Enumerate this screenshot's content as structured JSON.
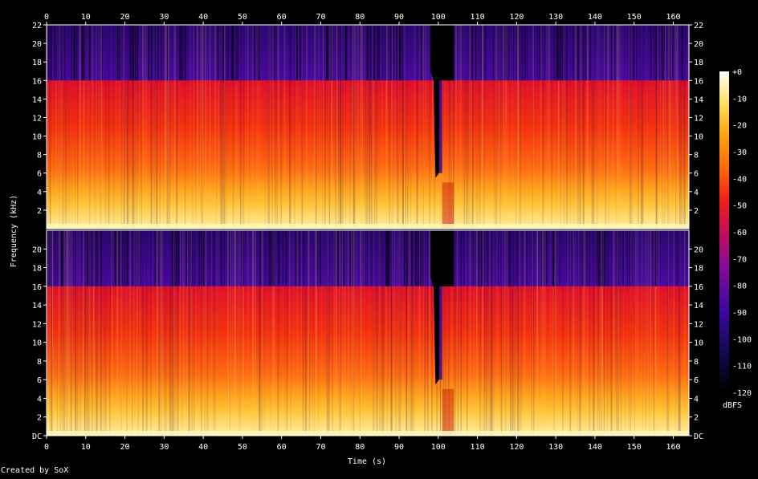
{
  "chart_data": {
    "type": "heatmap",
    "title": "",
    "xlabel": "Time (s)",
    "ylabel": "Frequency (kHz)",
    "xlim": [
      0,
      164
    ],
    "ylim": [
      0,
      22
    ],
    "x_ticks": [
      0,
      10,
      20,
      30,
      40,
      50,
      60,
      70,
      80,
      90,
      100,
      110,
      120,
      130,
      140,
      150,
      160
    ],
    "y_ticks_top": [
      "2",
      "4",
      "6",
      "8",
      "10",
      "12",
      "14",
      "16",
      "18",
      "20",
      "22"
    ],
    "y_ticks_bottom": [
      "DC",
      "2",
      "4",
      "6",
      "8",
      "10",
      "12",
      "14",
      "16",
      "18",
      "20"
    ],
    "colorbar": {
      "label": "dBFS",
      "range": [
        -120,
        0
      ],
      "ticks": [
        "+0",
        "-10",
        "-20",
        "-30",
        "-40",
        "-50",
        "-60",
        "-70",
        "-80",
        "-90",
        "-100",
        "-110",
        "-120"
      ]
    },
    "channels": 2,
    "lowpass_cutoff_khz": 16,
    "gap_region_s": [
      98,
      104
    ],
    "footer": "Created by SoX"
  }
}
